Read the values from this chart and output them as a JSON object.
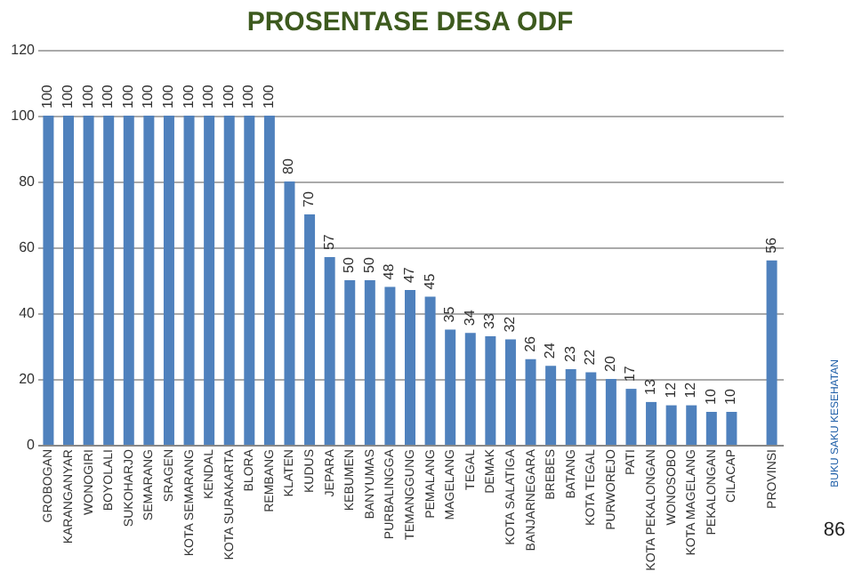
{
  "chart_data": {
    "type": "bar",
    "title": "PROSENTASE DESA ODF",
    "categories": [
      "GROBOGAN",
      "KARANGANYAR",
      "WONOGIRI",
      "BOYOLALI",
      "SUKOHARJO",
      "SEMARANG",
      "SRAGEN",
      "KOTA SEMARANG",
      "KENDAL",
      "KOTA SURAKARTA",
      "BLORA",
      "REMBANG",
      "KLATEN",
      "KUDUS",
      "JEPARA",
      "KEBUMEN",
      "BANYUMAS",
      "PURBALINGGA",
      "TEMANGGUNG",
      "PEMALANG",
      "MAGELANG",
      "TEGAL",
      "DEMAK",
      "KOTA SALATIGA",
      "BANJARNEGARA",
      "BREBES",
      "BATANG",
      "KOTA TEGAL",
      "PURWOREJO",
      "PATI",
      "KOTA PEKALONGAN",
      "WONOSOBO",
      "KOTA MAGELANG",
      "PEKALONGAN",
      "CILACAP",
      null,
      "PROVINSI"
    ],
    "values": [
      100,
      100,
      100,
      100,
      100,
      100,
      100,
      100,
      100,
      100,
      100,
      100,
      80,
      70,
      57,
      50,
      50,
      48,
      47,
      45,
      35,
      34,
      33,
      32,
      26,
      24,
      23,
      22,
      20,
      17,
      13,
      12,
      12,
      10,
      10,
      null,
      56
    ],
    "color": "#4f81bd",
    "ylim": [
      0,
      120
    ],
    "yticks": [
      0,
      20,
      40,
      60,
      80,
      100,
      120
    ],
    "grid": "y",
    "data_labels": true,
    "annotations": [
      "BUKU SAKU KESEHATAN",
      "86"
    ]
  }
}
